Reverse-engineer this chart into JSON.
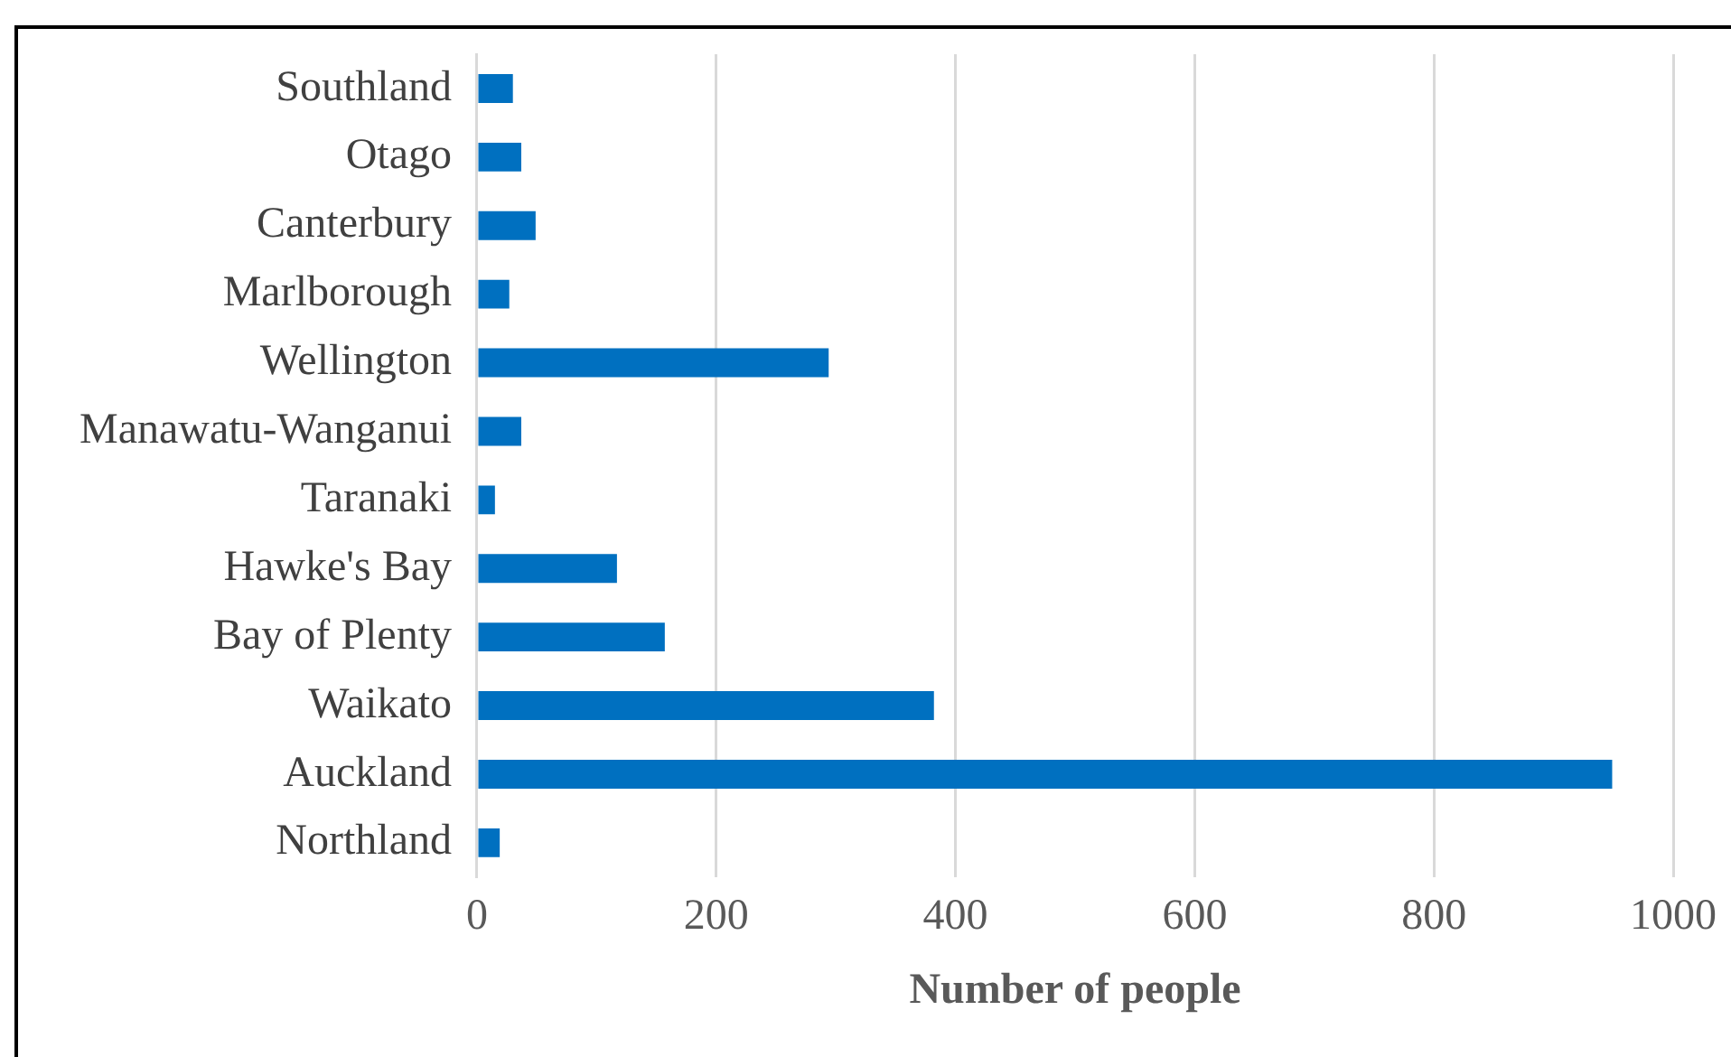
{
  "chart_data": {
    "type": "bar",
    "orientation": "horizontal",
    "xlabel": "Number of people",
    "categories": [
      "Southland",
      "Otago",
      "Canterbury",
      "Marlborough",
      "Wellington",
      "Manawatu-Wanganui",
      "Taranaki",
      "Hawke's Bay",
      "Bay of Plenty",
      "Waikato",
      "Auckland",
      "Northland"
    ],
    "values": [
      30,
      37,
      49,
      27,
      294,
      37,
      15,
      117,
      157,
      382,
      949,
      19
    ],
    "color": "#0070c0",
    "xlim": [
      0,
      1000
    ],
    "xticks": [
      0,
      200,
      400,
      600,
      800,
      1000
    ],
    "grid": "x",
    "legend": false
  }
}
